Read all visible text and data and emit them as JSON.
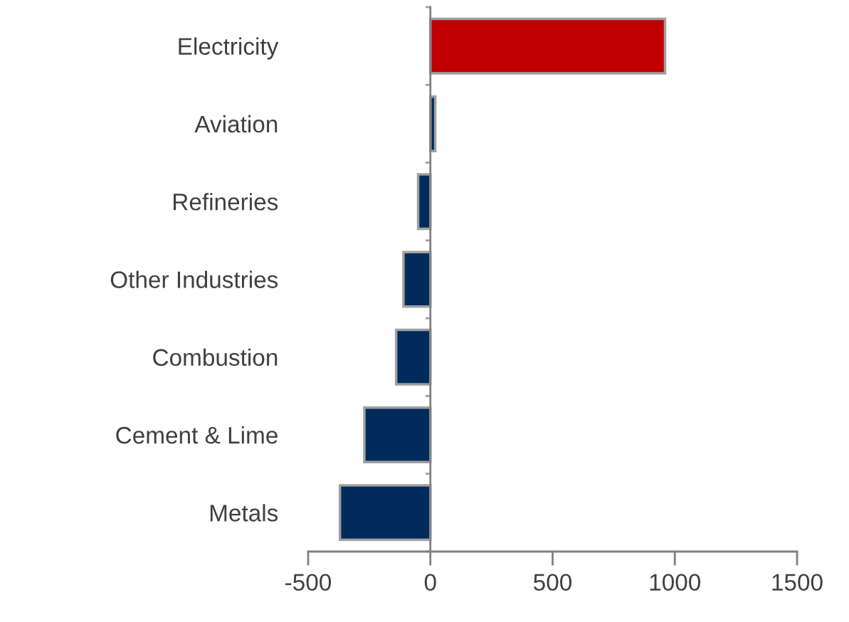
{
  "chart_data": {
    "type": "bar",
    "orientation": "horizontal",
    "categories": [
      "Electricity",
      "Aviation",
      "Refineries",
      "Other Industries",
      "Combustion",
      "Cement & Lime",
      "Metals"
    ],
    "values": [
      960,
      20,
      -50,
      -110,
      -140,
      -270,
      -370
    ],
    "colors": [
      "#c00000",
      "#002b5c",
      "#002b5c",
      "#002b5c",
      "#002b5c",
      "#002b5c",
      "#002b5c"
    ],
    "xlim": [
      -500,
      1500
    ],
    "xticks": [
      -500,
      0,
      500,
      1000,
      1500
    ],
    "legend": false
  }
}
